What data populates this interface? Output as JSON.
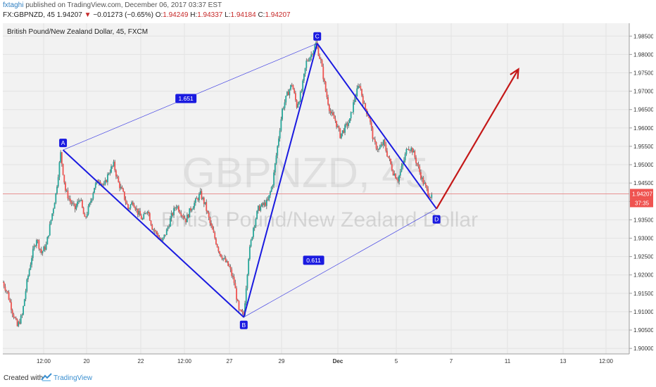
{
  "header": {
    "publisher": "fxtaghi",
    "published_text": "published on TradingView.com, December 06, 2017 03:37 EST",
    "symbol": "FX:GBPNZD, 45",
    "last": "1.94207",
    "change_arrow": "▼",
    "change": "−0.01273 (−0.65%)",
    "open_label": "O:",
    "open": "1.94249",
    "high_label": "H:",
    "high": "1.94337",
    "low_label": "L:",
    "low": "1.94184",
    "close_label": "C:",
    "close": "1.94207"
  },
  "footer": {
    "created_with": "Created with",
    "brand": "TradingView"
  },
  "chart_data": {
    "type": "candlestick",
    "title": "British Pound/New Zealand Dollar, 45, FXCM",
    "watermark_symbol": "GBPNZD, 45",
    "watermark_name": "British Pound/New Zealand Dollar",
    "ylim": [
      1.8985,
      1.9885
    ],
    "y_ticks": [
      "1.98500",
      "1.98000",
      "1.97500",
      "1.97000",
      "1.96500",
      "1.96000",
      "1.95500",
      "1.95000",
      "1.94500",
      "1.94000",
      "1.93500",
      "1.93000",
      "1.92500",
      "1.92000",
      "1.91500",
      "1.91000",
      "1.90500",
      "1.90000"
    ],
    "x_ticks": [
      "12:00",
      "20",
      "22",
      "12:00",
      "27",
      "29",
      "Dec",
      "5",
      "7",
      "11",
      "13",
      "12:00"
    ],
    "current_price": "1.94207",
    "countdown": "37:35",
    "grid": true,
    "colors": {
      "up": "#26a69a",
      "down": "#ef5350",
      "pattern": "#1a1ae0",
      "projection": "#c41818",
      "price_line": "#e57373"
    },
    "close_path": [
      [
        0,
        1.918
      ],
      [
        2,
        1.915
      ],
      [
        4,
        1.91
      ],
      [
        6,
        1.906
      ],
      [
        8,
        1.909
      ],
      [
        10,
        1.918
      ],
      [
        12,
        1.925
      ],
      [
        14,
        1.93
      ],
      [
        16,
        1.926
      ],
      [
        18,
        1.928
      ],
      [
        20,
        1.935
      ],
      [
        22,
        1.942
      ],
      [
        24,
        1.953
      ],
      [
        26,
        1.943
      ],
      [
        28,
        1.94
      ],
      [
        30,
        1.938
      ],
      [
        32,
        1.941
      ],
      [
        34,
        1.935
      ],
      [
        36,
        1.939
      ],
      [
        38,
        1.944
      ],
      [
        40,
        1.946
      ],
      [
        42,
        1.944
      ],
      [
        44,
        1.948
      ],
      [
        46,
        1.95
      ],
      [
        48,
        1.945
      ],
      [
        50,
        1.942
      ],
      [
        52,
        1.938
      ],
      [
        54,
        1.94
      ],
      [
        56,
        1.937
      ],
      [
        58,
        1.935
      ],
      [
        60,
        1.938
      ],
      [
        62,
        1.933
      ],
      [
        64,
        1.931
      ],
      [
        66,
        1.929
      ],
      [
        68,
        1.932
      ],
      [
        70,
        1.936
      ],
      [
        72,
        1.939
      ],
      [
        74,
        1.937
      ],
      [
        76,
        1.935
      ],
      [
        78,
        1.938
      ],
      [
        80,
        1.94
      ],
      [
        82,
        1.942
      ],
      [
        84,
        1.939
      ],
      [
        86,
        1.934
      ],
      [
        88,
        1.93
      ],
      [
        90,
        1.926
      ],
      [
        92,
        1.924
      ],
      [
        94,
        1.922
      ],
      [
        96,
        1.918
      ],
      [
        98,
        1.91
      ],
      [
        100,
        1.909
      ],
      [
        102,
        1.925
      ],
      [
        104,
        1.933
      ],
      [
        106,
        1.938
      ],
      [
        108,
        1.939
      ],
      [
        110,
        1.94
      ],
      [
        112,
        1.945
      ],
      [
        114,
        1.955
      ],
      [
        116,
        1.965
      ],
      [
        118,
        1.969
      ],
      [
        120,
        1.972
      ],
      [
        122,
        1.966
      ],
      [
        124,
        1.97
      ],
      [
        126,
        1.978
      ],
      [
        128,
        1.98
      ],
      [
        130,
        1.983
      ],
      [
        132,
        1.978
      ],
      [
        134,
        1.97
      ],
      [
        136,
        1.964
      ],
      [
        138,
        1.962
      ],
      [
        140,
        1.958
      ],
      [
        142,
        1.96
      ],
      [
        144,
        1.962
      ],
      [
        146,
        1.968
      ],
      [
        148,
        1.972
      ],
      [
        150,
        1.966
      ],
      [
        152,
        1.963
      ],
      [
        154,
        1.956
      ],
      [
        156,
        1.954
      ],
      [
        158,
        1.956
      ],
      [
        160,
        1.952
      ],
      [
        162,
        1.948
      ],
      [
        164,
        1.946
      ],
      [
        166,
        1.95
      ],
      [
        168,
        1.955
      ],
      [
        170,
        1.954
      ],
      [
        172,
        1.95
      ],
      [
        174,
        1.946
      ],
      [
        176,
        1.943
      ],
      [
        178,
        1.941
      ]
    ],
    "pattern_points": [
      {
        "label": "A",
        "t": 25,
        "price": 1.954
      },
      {
        "label": "B",
        "t": 100,
        "price": 1.9085
      },
      {
        "label": "C",
        "t": 130.5,
        "price": 1.983
      },
      {
        "label": "D",
        "t": 180,
        "price": 1.938
      }
    ],
    "ratios": [
      {
        "value": "1.651",
        "t": 76,
        "price": 1.968
      },
      {
        "value": "0.611",
        "t": 129,
        "price": 1.924
      }
    ],
    "projection": {
      "from_t": 180,
      "from_price": 1.938,
      "to_t": 214,
      "to_price": 1.976
    }
  }
}
